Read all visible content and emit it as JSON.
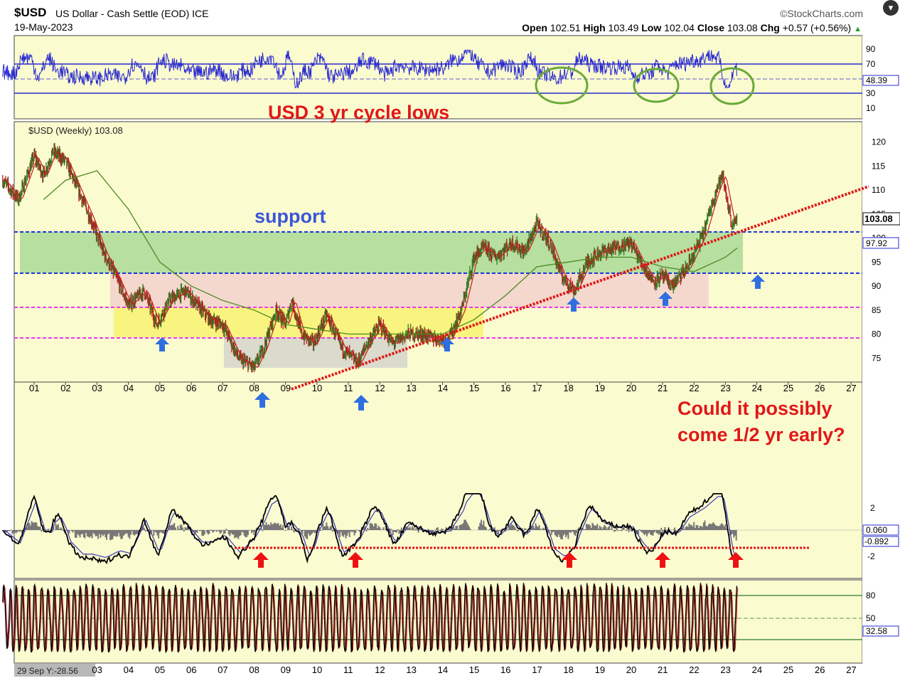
{
  "header": {
    "ticker": "$USD",
    "description": "US Dollar - Cash Settle (EOD)",
    "exchange": "ICE",
    "date": "19-May-2023",
    "brand": "©StockCharts.com",
    "quote": {
      "open_label": "Open",
      "open": "102.51",
      "high_label": "High",
      "high": "103.49",
      "low_label": "Low",
      "low": "102.04",
      "close_label": "Close",
      "close": "103.08",
      "chg_label": "Chg",
      "chg": "+0.57 (+0.56%)"
    }
  },
  "annotations": {
    "cycle_lows": "USD 3 yr cycle lows",
    "support": "support",
    "question_line1": "Could it possibly",
    "question_line2": "come 1/2 yr early?"
  },
  "chart_data": [
    {
      "type": "line",
      "panel": "top-indicator",
      "ylim": [
        0,
        100
      ],
      "tick_labels": [
        "90",
        "70",
        "30",
        "10"
      ],
      "last_value_label": "48.39",
      "reference_lines": [
        70,
        30
      ],
      "highlight_circles": 3
    },
    {
      "type": "line",
      "panel": "price",
      "legend": "$USD (Weekly) 103.08",
      "x_tick_labels": [
        "01",
        "02",
        "03",
        "04",
        "05",
        "06",
        "07",
        "08",
        "09",
        "10",
        "11",
        "12",
        "13",
        "14",
        "15",
        "16",
        "17",
        "18",
        "19",
        "20",
        "21",
        "22",
        "23",
        "24",
        "25",
        "26",
        "27"
      ],
      "y_tick_labels": [
        "120",
        "115",
        "110",
        "105",
        "100",
        "95",
        "90",
        "85",
        "80",
        "75"
      ],
      "ylim": [
        70,
        122
      ],
      "last_close_label": "103.08",
      "ma_label": "97.92",
      "series": [
        {
          "x": [
            2000.0,
            2000.5,
            2001.0,
            2001.3,
            2001.6,
            2002.0,
            2002.4,
            2002.8,
            2003.2,
            2003.6,
            2004.0,
            2004.5,
            2004.9,
            2005.3,
            2005.8,
            2006.2,
            2006.6,
            2007.0,
            2007.5,
            2008.0,
            2008.3,
            2008.7,
            2009.0,
            2009.2,
            2009.5,
            2009.9,
            2010.3,
            2010.8,
            2011.3,
            2011.6,
            2012.0,
            2012.4,
            2012.9,
            2013.3,
            2013.8,
            2014.2,
            2014.6,
            2015.0,
            2015.3,
            2015.7,
            2016.2,
            2016.6,
            2017.0,
            2017.4,
            2017.8,
            2018.2,
            2018.6,
            2019.0,
            2019.5,
            2020.0,
            2020.3,
            2020.7,
            2021.0,
            2021.3,
            2021.8,
            2022.3,
            2022.7,
            2022.9,
            2023.2,
            2023.38
          ],
          "values": [
            112,
            108,
            117,
            113,
            118,
            116,
            110,
            104,
            97,
            92,
            86,
            89,
            82,
            87,
            89,
            86,
            83,
            82,
            75,
            73,
            77,
            85,
            82,
            87,
            80,
            78,
            84,
            77,
            74,
            78,
            82,
            78,
            80,
            80,
            79,
            79,
            85,
            96,
            98,
            96,
            99,
            97,
            103,
            99,
            92,
            89,
            95,
            97,
            98,
            99,
            95,
            91,
            92,
            90,
            94,
            101,
            110,
            113,
            103,
            103.08
          ]
        },
        {
          "x": [
            2001.3,
            2002.0,
            2003.0,
            2004.0,
            2005.0,
            2006.0,
            2007.0,
            2008.0,
            2009.0,
            2010.0,
            2011.0,
            2012.0,
            2013.0,
            2014.0,
            2015.0,
            2016.0,
            2017.0,
            2018.0,
            2019.0,
            2020.0,
            2021.0,
            2022.0,
            2023.0,
            2023.38
          ],
          "values": [
            108,
            112,
            114,
            106,
            95,
            90,
            87,
            85,
            82,
            81,
            80,
            80,
            80,
            80,
            83,
            88,
            94,
            95,
            96,
            96,
            94,
            93,
            96,
            97.92
          ]
        }
      ],
      "support_lines": [
        100.5,
        91.8
      ],
      "magenta_lines": [
        85,
        78.5
      ]
    },
    {
      "type": "line",
      "panel": "lower-indicator",
      "tick_labels": [
        "2",
        "-2"
      ],
      "last_value_labels": [
        "0.060",
        "-0.892"
      ]
    },
    {
      "type": "line",
      "panel": "bottom-indicator",
      "ylim": [
        0,
        100
      ],
      "tick_labels": [
        "80",
        "50",
        "20"
      ],
      "last_value_label": "32.58",
      "crosshair_label": "29 Sep Y:-28.56",
      "x_tick_labels": [
        "03",
        "04",
        "05",
        "06",
        "07",
        "08",
        "09",
        "10",
        "11",
        "12",
        "13",
        "14",
        "15",
        "16",
        "17",
        "18",
        "19",
        "20",
        "21",
        "22",
        "23",
        "24",
        "25",
        "26",
        "27"
      ]
    }
  ],
  "colors": {
    "panel_bg": "#fbfbd0",
    "frame": "#2a2ad0",
    "support": "#1a36d8",
    "magenta": "#e83ae8",
    "trendline": "#e01818",
    "arrow_blue": "#2f6ee0",
    "arrow_red": "#ee1111",
    "circle": "#6aaa3a",
    "zone_green": "#9fd590",
    "zone_pink": "#f3d4cc",
    "zone_yellow": "#f7f26a",
    "zone_gray": "#d6d6cc",
    "ma": "#4a8a22",
    "price": "#1e5018",
    "short_ma": "#c81e1e"
  }
}
